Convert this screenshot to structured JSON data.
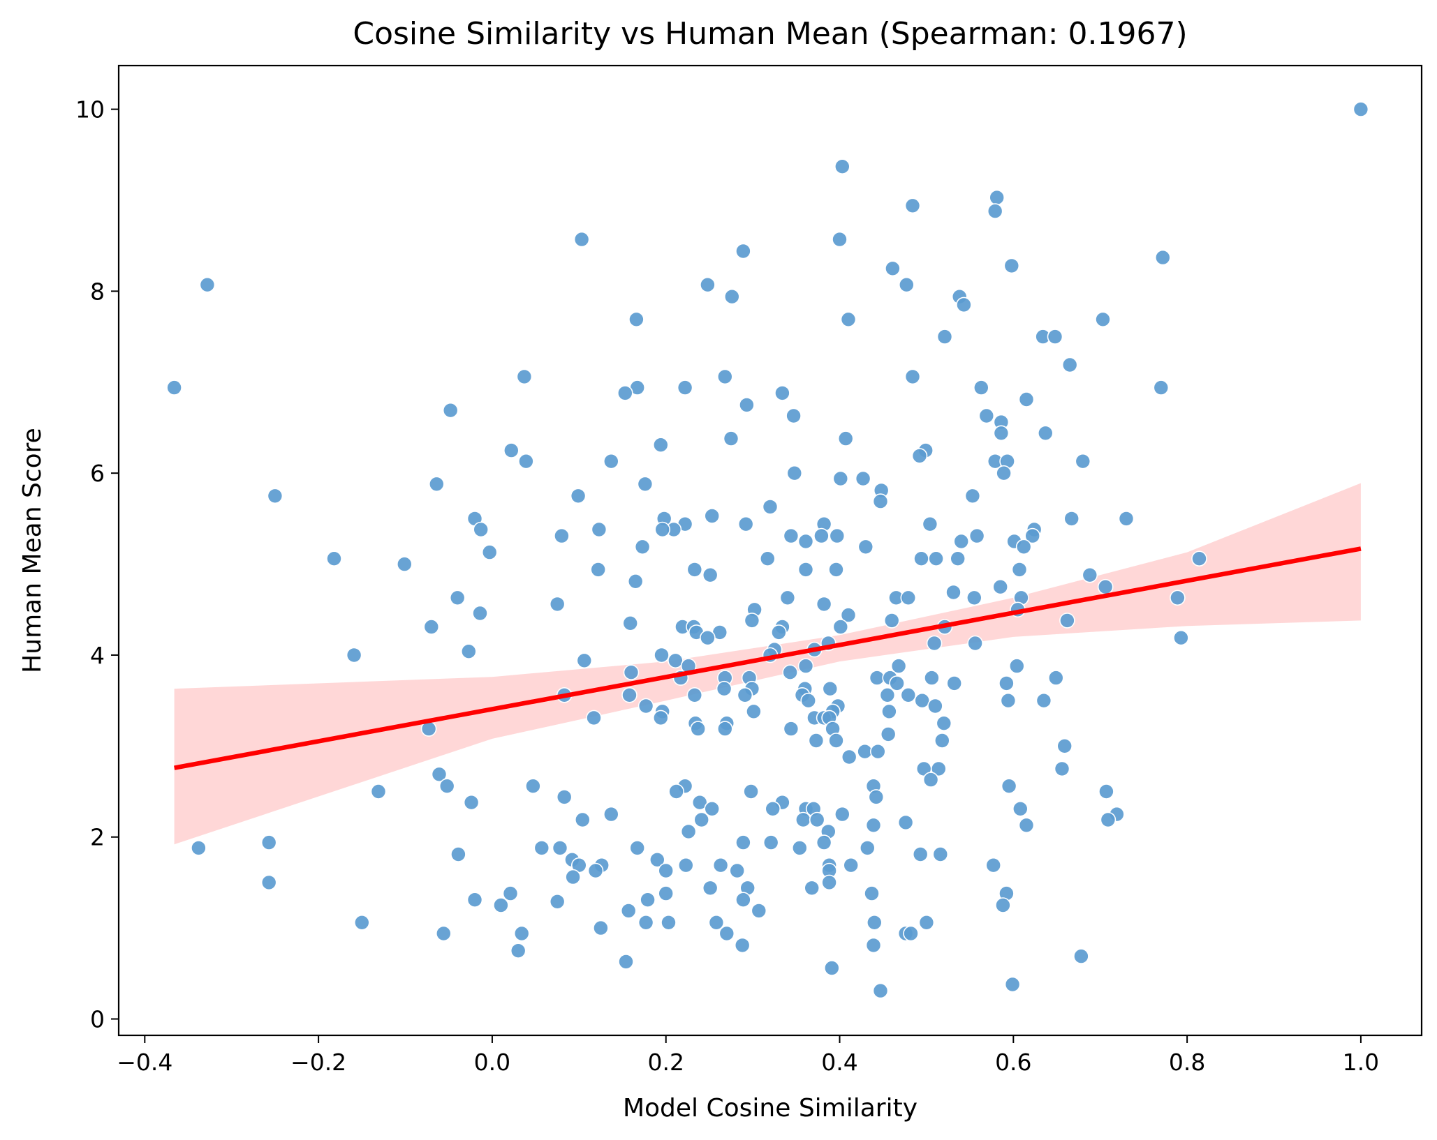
{
  "chart_data": {
    "type": "scatter",
    "title": "Cosine Similarity vs Human Mean (Spearman: 0.1967)",
    "xlabel": "Model Cosine Similarity",
    "ylabel": "Human Mean Score",
    "xlim": [
      -0.43,
      1.07
    ],
    "ylim": [
      -0.18,
      10.48
    ],
    "xticks": [
      -0.4,
      -0.2,
      0.0,
      0.2,
      0.4,
      0.6,
      0.8,
      1.0
    ],
    "xtick_labels": [
      "−0.4",
      "−0.2",
      "0.0",
      "0.2",
      "0.4",
      "0.6",
      "0.8",
      "1.0"
    ],
    "yticks": [
      0,
      2,
      4,
      6,
      8,
      10
    ],
    "ytick_labels": [
      "0",
      "2",
      "4",
      "6",
      "8",
      "10"
    ],
    "grid": false,
    "legend": "none",
    "colors": {
      "points": "#5b9bd0",
      "regression_line": "#ff0000",
      "confidence_band": "#ffbcbc"
    },
    "regression": {
      "x_start": -0.366,
      "y_start": 2.76,
      "x_end": 1.0,
      "y_end": 5.17
    },
    "confidence_band": {
      "x": [
        -0.366,
        0.0,
        0.2,
        0.4,
        0.6,
        0.8,
        1.0
      ],
      "upper": [
        3.63,
        3.76,
        3.93,
        4.22,
        4.63,
        5.13,
        5.89
      ],
      "lower": [
        1.92,
        3.08,
        3.5,
        3.93,
        4.2,
        4.32,
        4.38
      ]
    },
    "points": [
      [
        1.0,
        10.0
      ],
      [
        0.403,
        9.37
      ],
      [
        0.581,
        9.03
      ],
      [
        0.484,
        8.94
      ],
      [
        0.579,
        8.88
      ],
      [
        0.103,
        8.57
      ],
      [
        0.4,
        8.57
      ],
      [
        0.289,
        8.44
      ],
      [
        0.772,
        8.37
      ],
      [
        0.598,
        8.28
      ],
      [
        0.461,
        8.25
      ],
      [
        -0.328,
        8.07
      ],
      [
        0.248,
        8.07
      ],
      [
        0.477,
        8.07
      ],
      [
        0.276,
        7.94
      ],
      [
        0.538,
        7.94
      ],
      [
        0.543,
        7.85
      ],
      [
        0.41,
        7.69
      ],
      [
        0.166,
        7.69
      ],
      [
        0.703,
        7.69
      ],
      [
        0.521,
        7.5
      ],
      [
        0.634,
        7.5
      ],
      [
        0.648,
        7.5
      ],
      [
        0.665,
        7.19
      ],
      [
        0.037,
        7.06
      ],
      [
        0.268,
        7.06
      ],
      [
        0.484,
        7.06
      ],
      [
        -0.366,
        6.94
      ],
      [
        0.167,
        6.94
      ],
      [
        0.222,
        6.94
      ],
      [
        0.563,
        6.94
      ],
      [
        0.77,
        6.94
      ],
      [
        0.153,
        6.88
      ],
      [
        0.334,
        6.88
      ],
      [
        0.615,
        6.81
      ],
      [
        0.293,
        6.75
      ],
      [
        -0.048,
        6.69
      ],
      [
        0.347,
        6.63
      ],
      [
        0.569,
        6.63
      ],
      [
        0.586,
        6.56
      ],
      [
        0.586,
        6.44
      ],
      [
        0.637,
        6.44
      ],
      [
        0.275,
        6.38
      ],
      [
        0.407,
        6.38
      ],
      [
        0.022,
        6.25
      ],
      [
        0.499,
        6.25
      ],
      [
        0.194,
        6.31
      ],
      [
        0.492,
        6.19
      ],
      [
        0.039,
        6.13
      ],
      [
        0.137,
        6.13
      ],
      [
        0.579,
        6.13
      ],
      [
        0.593,
        6.13
      ],
      [
        0.68,
        6.13
      ],
      [
        0.348,
        6.0
      ],
      [
        0.589,
        6.0
      ],
      [
        0.401,
        5.94
      ],
      [
        0.427,
        5.94
      ],
      [
        -0.064,
        5.88
      ],
      [
        0.176,
        5.88
      ],
      [
        0.448,
        5.81
      ],
      [
        -0.25,
        5.75
      ],
      [
        0.099,
        5.75
      ],
      [
        0.553,
        5.75
      ],
      [
        0.447,
        5.69
      ],
      [
        0.32,
        5.63
      ],
      [
        0.253,
        5.53
      ],
      [
        -0.02,
        5.5
      ],
      [
        0.198,
        5.5
      ],
      [
        0.667,
        5.5
      ],
      [
        0.73,
        5.5
      ],
      [
        0.222,
        5.44
      ],
      [
        0.292,
        5.44
      ],
      [
        0.382,
        5.44
      ],
      [
        0.504,
        5.44
      ],
      [
        0.209,
        5.38
      ],
      [
        -0.013,
        5.38
      ],
      [
        0.123,
        5.38
      ],
      [
        0.196,
        5.38
      ],
      [
        0.624,
        5.38
      ],
      [
        0.08,
        5.31
      ],
      [
        0.344,
        5.31
      ],
      [
        0.379,
        5.31
      ],
      [
        0.397,
        5.31
      ],
      [
        0.558,
        5.31
      ],
      [
        0.622,
        5.31
      ],
      [
        0.361,
        5.25
      ],
      [
        0.54,
        5.25
      ],
      [
        0.601,
        5.25
      ],
      [
        0.612,
        5.19
      ],
      [
        0.173,
        5.19
      ],
      [
        0.43,
        5.19
      ],
      [
        -0.003,
        5.13
      ],
      [
        -0.182,
        5.06
      ],
      [
        0.317,
        5.06
      ],
      [
        0.494,
        5.06
      ],
      [
        0.511,
        5.06
      ],
      [
        0.536,
        5.06
      ],
      [
        0.814,
        5.06
      ],
      [
        -0.101,
        5.0
      ],
      [
        0.122,
        4.94
      ],
      [
        0.233,
        4.94
      ],
      [
        0.361,
        4.94
      ],
      [
        0.396,
        4.94
      ],
      [
        0.607,
        4.94
      ],
      [
        0.251,
        4.88
      ],
      [
        0.688,
        4.88
      ],
      [
        0.165,
        4.81
      ],
      [
        0.585,
        4.75
      ],
      [
        0.706,
        4.75
      ],
      [
        0.531,
        4.69
      ],
      [
        -0.04,
        4.63
      ],
      [
        0.34,
        4.63
      ],
      [
        0.465,
        4.63
      ],
      [
        0.479,
        4.63
      ],
      [
        0.555,
        4.63
      ],
      [
        0.609,
        4.63
      ],
      [
        0.789,
        4.63
      ],
      [
        0.075,
        4.56
      ],
      [
        0.382,
        4.56
      ],
      [
        0.302,
        4.5
      ],
      [
        -0.014,
        4.46
      ],
      [
        0.605,
        4.5
      ],
      [
        0.41,
        4.44
      ],
      [
        0.159,
        4.35
      ],
      [
        0.299,
        4.38
      ],
      [
        0.46,
        4.38
      ],
      [
        0.662,
        4.38
      ],
      [
        -0.07,
        4.31
      ],
      [
        0.219,
        4.31
      ],
      [
        0.232,
        4.31
      ],
      [
        0.334,
        4.31
      ],
      [
        0.401,
        4.31
      ],
      [
        0.521,
        4.31
      ],
      [
        0.235,
        4.25
      ],
      [
        0.262,
        4.25
      ],
      [
        0.33,
        4.25
      ],
      [
        0.248,
        4.19
      ],
      [
        0.793,
        4.19
      ],
      [
        0.387,
        4.13
      ],
      [
        0.509,
        4.13
      ],
      [
        0.556,
        4.13
      ],
      [
        0.325,
        4.06
      ],
      [
        0.371,
        4.06
      ],
      [
        -0.027,
        4.04
      ],
      [
        -0.159,
        4.0
      ],
      [
        0.195,
        4.0
      ],
      [
        0.32,
        4.0
      ],
      [
        0.106,
        3.94
      ],
      [
        0.211,
        3.94
      ],
      [
        0.226,
        3.88
      ],
      [
        0.361,
        3.88
      ],
      [
        0.468,
        3.88
      ],
      [
        0.604,
        3.88
      ],
      [
        0.16,
        3.81
      ],
      [
        0.343,
        3.81
      ],
      [
        0.217,
        3.75
      ],
      [
        0.268,
        3.75
      ],
      [
        0.296,
        3.75
      ],
      [
        0.443,
        3.75
      ],
      [
        0.458,
        3.75
      ],
      [
        0.506,
        3.75
      ],
      [
        0.649,
        3.75
      ],
      [
        0.466,
        3.69
      ],
      [
        0.532,
        3.69
      ],
      [
        0.592,
        3.69
      ],
      [
        0.267,
        3.63
      ],
      [
        0.299,
        3.63
      ],
      [
        0.36,
        3.63
      ],
      [
        0.389,
        3.63
      ],
      [
        0.083,
        3.56
      ],
      [
        0.158,
        3.56
      ],
      [
        0.233,
        3.56
      ],
      [
        0.291,
        3.56
      ],
      [
        0.357,
        3.56
      ],
      [
        0.455,
        3.56
      ],
      [
        0.479,
        3.56
      ],
      [
        0.495,
        3.5
      ],
      [
        0.364,
        3.5
      ],
      [
        0.594,
        3.5
      ],
      [
        0.635,
        3.5
      ],
      [
        0.177,
        3.44
      ],
      [
        0.398,
        3.44
      ],
      [
        0.51,
        3.44
      ],
      [
        0.196,
        3.38
      ],
      [
        0.301,
        3.38
      ],
      [
        0.392,
        3.38
      ],
      [
        0.457,
        3.38
      ],
      [
        0.117,
        3.31
      ],
      [
        0.194,
        3.31
      ],
      [
        0.371,
        3.31
      ],
      [
        0.382,
        3.31
      ],
      [
        0.388,
        3.31
      ],
      [
        0.234,
        3.25
      ],
      [
        0.27,
        3.25
      ],
      [
        0.52,
        3.25
      ],
      [
        -0.073,
        3.19
      ],
      [
        0.237,
        3.19
      ],
      [
        0.268,
        3.19
      ],
      [
        0.344,
        3.19
      ],
      [
        0.392,
        3.19
      ],
      [
        0.396,
        3.06
      ],
      [
        0.373,
        3.06
      ],
      [
        0.456,
        3.13
      ],
      [
        0.518,
        3.06
      ],
      [
        0.659,
        3.0
      ],
      [
        0.429,
        2.94
      ],
      [
        0.444,
        2.94
      ],
      [
        0.411,
        2.88
      ],
      [
        -0.061,
        2.69
      ],
      [
        0.497,
        2.75
      ],
      [
        0.514,
        2.75
      ],
      [
        0.656,
        2.75
      ],
      [
        0.505,
        2.63
      ],
      [
        -0.052,
        2.56
      ],
      [
        0.047,
        2.56
      ],
      [
        0.222,
        2.56
      ],
      [
        0.439,
        2.56
      ],
      [
        0.595,
        2.56
      ],
      [
        -0.131,
        2.5
      ],
      [
        0.212,
        2.5
      ],
      [
        0.298,
        2.5
      ],
      [
        0.707,
        2.5
      ],
      [
        0.083,
        2.44
      ],
      [
        0.442,
        2.44
      ],
      [
        -0.024,
        2.38
      ],
      [
        0.239,
        2.38
      ],
      [
        0.334,
        2.38
      ],
      [
        0.253,
        2.31
      ],
      [
        0.323,
        2.31
      ],
      [
        0.361,
        2.31
      ],
      [
        0.37,
        2.31
      ],
      [
        0.608,
        2.31
      ],
      [
        0.137,
        2.25
      ],
      [
        0.403,
        2.25
      ],
      [
        0.719,
        2.25
      ],
      [
        0.104,
        2.19
      ],
      [
        0.241,
        2.19
      ],
      [
        0.358,
        2.19
      ],
      [
        0.374,
        2.19
      ],
      [
        0.476,
        2.16
      ],
      [
        0.709,
        2.19
      ],
      [
        0.387,
        2.06
      ],
      [
        0.226,
        2.06
      ],
      [
        0.439,
        2.13
      ],
      [
        0.615,
        2.13
      ],
      [
        -0.257,
        1.94
      ],
      [
        0.289,
        1.94
      ],
      [
        0.321,
        1.94
      ],
      [
        0.382,
        1.94
      ],
      [
        -0.338,
        1.88
      ],
      [
        0.057,
        1.88
      ],
      [
        0.078,
        1.88
      ],
      [
        0.167,
        1.88
      ],
      [
        0.354,
        1.88
      ],
      [
        0.432,
        1.88
      ],
      [
        -0.039,
        1.81
      ],
      [
        0.493,
        1.81
      ],
      [
        0.516,
        1.81
      ],
      [
        0.092,
        1.75
      ],
      [
        0.19,
        1.75
      ],
      [
        0.1,
        1.69
      ],
      [
        0.126,
        1.69
      ],
      [
        0.223,
        1.69
      ],
      [
        0.263,
        1.69
      ],
      [
        0.388,
        1.69
      ],
      [
        0.413,
        1.69
      ],
      [
        0.577,
        1.69
      ],
      [
        0.119,
        1.63
      ],
      [
        0.2,
        1.63
      ],
      [
        0.282,
        1.63
      ],
      [
        0.388,
        1.63
      ],
      [
        0.093,
        1.56
      ],
      [
        -0.257,
        1.5
      ],
      [
        0.388,
        1.5
      ],
      [
        0.251,
        1.44
      ],
      [
        0.294,
        1.44
      ],
      [
        0.368,
        1.44
      ],
      [
        0.021,
        1.38
      ],
      [
        0.2,
        1.38
      ],
      [
        0.437,
        1.38
      ],
      [
        0.592,
        1.38
      ],
      [
        -0.02,
        1.31
      ],
      [
        0.075,
        1.29
      ],
      [
        0.179,
        1.31
      ],
      [
        0.289,
        1.31
      ],
      [
        0.01,
        1.25
      ],
      [
        0.588,
        1.25
      ],
      [
        0.157,
        1.19
      ],
      [
        0.307,
        1.19
      ],
      [
        -0.15,
        1.06
      ],
      [
        0.177,
        1.06
      ],
      [
        0.203,
        1.06
      ],
      [
        0.258,
        1.06
      ],
      [
        0.44,
        1.06
      ],
      [
        0.5,
        1.06
      ],
      [
        0.125,
        1.0
      ],
      [
        -0.056,
        0.94
      ],
      [
        0.034,
        0.94
      ],
      [
        0.27,
        0.94
      ],
      [
        0.476,
        0.94
      ],
      [
        0.482,
        0.94
      ],
      [
        0.03,
        0.75
      ],
      [
        0.288,
        0.81
      ],
      [
        0.439,
        0.81
      ],
      [
        0.678,
        0.69
      ],
      [
        0.154,
        0.63
      ],
      [
        0.391,
        0.56
      ],
      [
        0.599,
        0.38
      ],
      [
        0.447,
        0.31
      ]
    ]
  }
}
